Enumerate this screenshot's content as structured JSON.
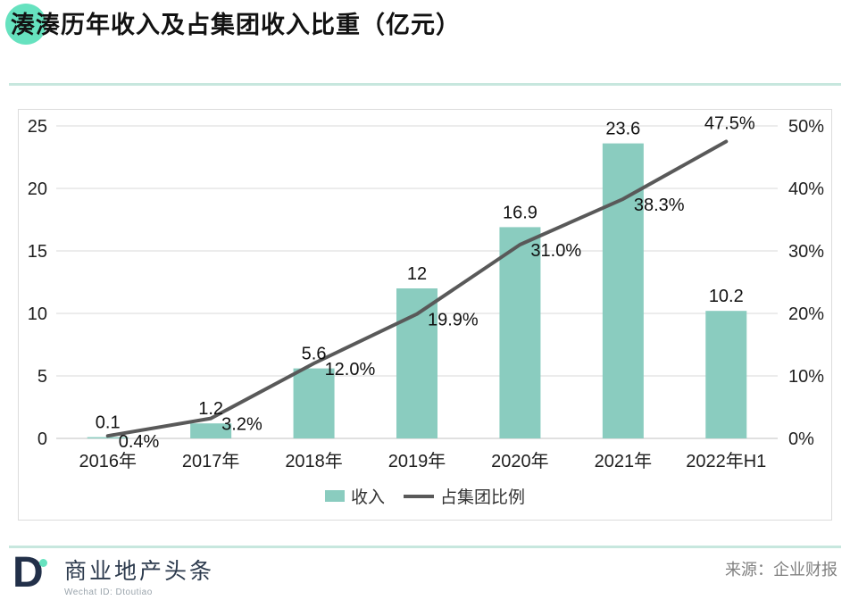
{
  "header": {
    "title": "湊湊历年收入及占集团收入比重（亿元）"
  },
  "chart_data": {
    "type": "bar",
    "title": "湊湊历年收入及占集团收入比重（亿元）",
    "categories": [
      "2016年",
      "2017年",
      "2018年",
      "2019年",
      "2020年",
      "2021年",
      "2022年H1"
    ],
    "series": [
      {
        "name": "收入",
        "type": "bar",
        "axis": "left",
        "values": [
          0.1,
          1.2,
          5.6,
          12,
          16.9,
          23.6,
          10.2
        ],
        "labels": [
          "0.1",
          "1.2",
          "5.6",
          "12",
          "16.9",
          "23.6",
          "10.2"
        ],
        "color": "#8accbf"
      },
      {
        "name": "占集团比例",
        "type": "line",
        "axis": "right",
        "values": [
          0.4,
          3.2,
          12.0,
          19.9,
          31.0,
          38.3,
          47.5
        ],
        "labels": [
          "0.4%",
          "3.2%",
          "12.0%",
          "19.9%",
          "31.0%",
          "38.3%",
          "47.5%"
        ],
        "color": "#595959"
      }
    ],
    "left_axis": {
      "min": 0,
      "max": 25,
      "ticks": [
        "0",
        "5",
        "10",
        "15",
        "20",
        "25"
      ]
    },
    "right_axis": {
      "min": 0,
      "max": 50,
      "ticks": [
        "0%",
        "10%",
        "20%",
        "30%",
        "40%",
        "50%"
      ]
    },
    "grid": true,
    "legend_position": "bottom"
  },
  "legend": {
    "bar_label": "收入",
    "line_label": "占集团比例"
  },
  "footer": {
    "logo_letter": "D",
    "brand_name": "商业地产头条",
    "brand_sub": "Wechat ID: Dtoutiao",
    "source": "来源：企业财报"
  },
  "colors": {
    "accent_mint": "#66e2bf",
    "bar_teal": "#8accbf",
    "line_gray": "#595959",
    "grid_gray": "#d9d9d9",
    "baseline_gray": "#c0c0c0",
    "divider_teal": "#c7e7de",
    "navy": "#223049",
    "tick_text": "#1f1f1f"
  }
}
